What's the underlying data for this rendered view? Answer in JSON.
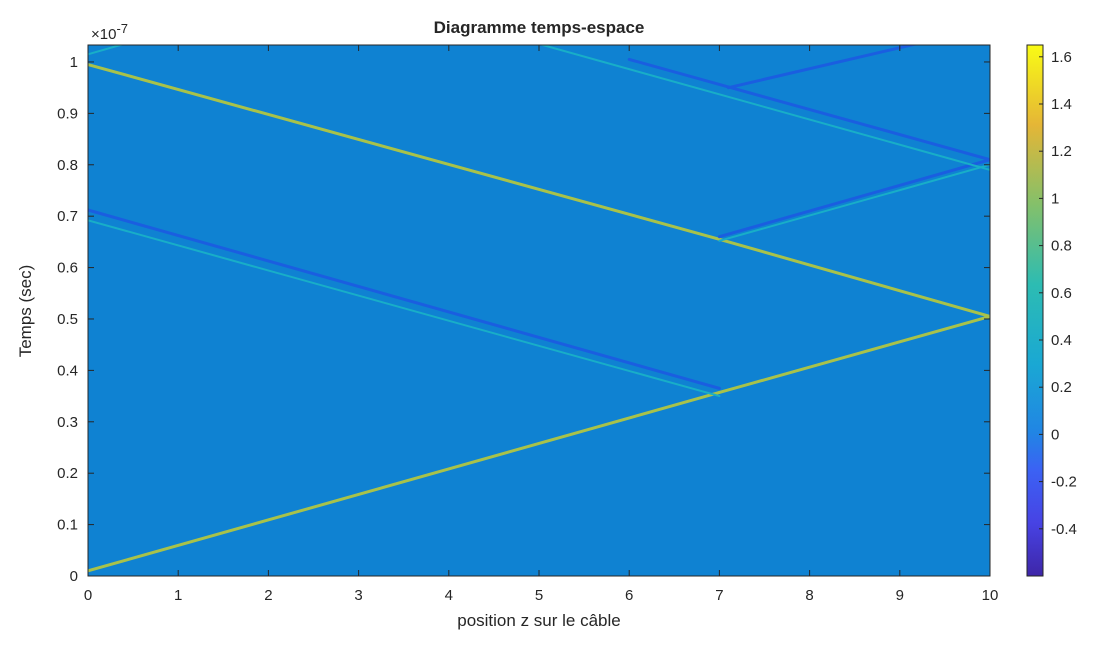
{
  "colors": {
    "background": "#0f82d2",
    "zero_level": "#1483d3",
    "positive_trace": "#a8c24a",
    "secondary_trace": "#18aec8",
    "negative_trace": "#1a5ee0",
    "axis": "#262626"
  },
  "chart_data": {
    "type": "heatmap",
    "title": "Diagramme temps-espace",
    "xlabel": "position z sur le câble",
    "ylabel": "Temps (sec)",
    "y_scale_exponent": "×10⁻⁷",
    "y_exponent_base": "×10",
    "y_exponent_power": "-7",
    "xlim": [
      0,
      10
    ],
    "ylim": [
      0,
      1.033
    ],
    "x_ticks": [
      "0",
      "1",
      "2",
      "3",
      "4",
      "5",
      "6",
      "7",
      "8",
      "9",
      "10"
    ],
    "y_ticks": [
      "0",
      "0.1",
      "0.2",
      "0.3",
      "0.4",
      "0.5",
      "0.6",
      "0.7",
      "0.8",
      "0.9",
      "1"
    ],
    "colorbar": {
      "colormap": "parula",
      "limits": [
        -0.6,
        1.65
      ],
      "ticks": [
        "-0.4",
        "-0.2",
        "0",
        "0.2",
        "0.4",
        "0.6",
        "0.8",
        "1",
        "1.2",
        "1.4",
        "1.6"
      ]
    },
    "traces": [
      {
        "amplitude": 0.9,
        "from": [
          0,
          0.01
        ],
        "to": [
          7,
          0.357
        ]
      },
      {
        "amplitude": 0.9,
        "from": [
          7,
          0.357
        ],
        "to": [
          10,
          0.505
        ]
      },
      {
        "amplitude": 0.9,
        "from": [
          10,
          0.505
        ],
        "to": [
          7,
          0.655
        ]
      },
      {
        "amplitude": 0.9,
        "from": [
          7,
          0.655
        ],
        "to": [
          0,
          0.995
        ]
      },
      {
        "amplitude": 0.3,
        "from": [
          7,
          0.35
        ],
        "to": [
          0,
          0.692
        ]
      },
      {
        "amplitude": -0.35,
        "from": [
          7,
          0.365
        ],
        "to": [
          0,
          0.712
        ]
      },
      {
        "amplitude": 0.35,
        "from": [
          7,
          0.652
        ],
        "to": [
          10,
          0.8
        ]
      },
      {
        "amplitude": -0.35,
        "from": [
          7,
          0.66
        ],
        "to": [
          10,
          0.81
        ]
      },
      {
        "amplitude": 0.3,
        "from": [
          10,
          0.79
        ],
        "to": [
          5,
          1.035
        ]
      },
      {
        "amplitude": -0.3,
        "from": [
          10,
          0.81
        ],
        "to": [
          6,
          1.005
        ]
      },
      {
        "amplitude": -0.3,
        "from": [
          7.1,
          0.95
        ],
        "to": [
          9.3,
          1.04
        ]
      },
      {
        "amplitude": 0.25,
        "from": [
          0,
          1.015
        ],
        "to": [
          0.4,
          1.035
        ]
      }
    ]
  }
}
